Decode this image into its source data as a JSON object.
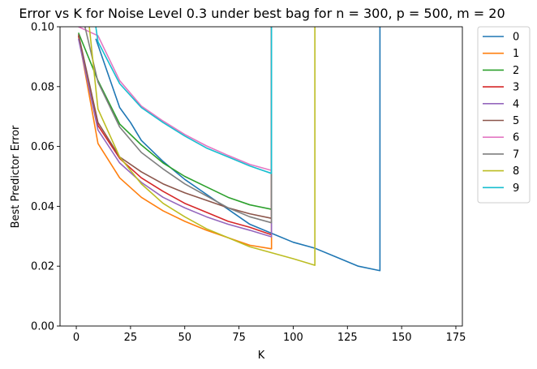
{
  "chart_data": {
    "type": "line",
    "title": "Error vs K for Noise Level 0.3 under best bag for n = 300, p = 500, m = 20",
    "xlabel": "K",
    "ylabel": "Best Predictor Error",
    "xlim": [
      -7.5,
      178
    ],
    "ylim": [
      0.0,
      0.1
    ],
    "xticks": [
      0,
      25,
      50,
      75,
      100,
      125,
      150,
      175
    ],
    "yticks": [
      0.0,
      0.02,
      0.04,
      0.06,
      0.08,
      0.1
    ],
    "xtick_labels": [
      "0",
      "25",
      "50",
      "75",
      "100",
      "125",
      "150",
      "175"
    ],
    "ytick_labels": [
      "0.00",
      "0.02",
      "0.04",
      "0.06",
      "0.08",
      "0.10"
    ],
    "grid": false,
    "legend_position": "outside-right-top",
    "series": [
      {
        "name": "0",
        "color": "#1f77b4",
        "points": [
          [
            9,
            0.096
          ],
          [
            20,
            0.073
          ],
          [
            25,
            0.068
          ],
          [
            30,
            0.062
          ],
          [
            40,
            0.055
          ],
          [
            50,
            0.049
          ],
          [
            60,
            0.044
          ],
          [
            70,
            0.039
          ],
          [
            80,
            0.034
          ],
          [
            90,
            0.031
          ],
          [
            100,
            0.028
          ],
          [
            110,
            0.026
          ],
          [
            120,
            0.023
          ],
          [
            130,
            0.02
          ],
          [
            140,
            0.0185
          ],
          [
            140,
            0.1
          ]
        ]
      },
      {
        "name": "1",
        "color": "#ff7f0e",
        "points": [
          [
            1,
            0.097
          ],
          [
            10,
            0.061
          ],
          [
            20,
            0.0495
          ],
          [
            30,
            0.043
          ],
          [
            40,
            0.0385
          ],
          [
            50,
            0.035
          ],
          [
            60,
            0.032
          ],
          [
            70,
            0.0295
          ],
          [
            80,
            0.027
          ],
          [
            90,
            0.0258
          ],
          [
            90,
            0.1
          ]
        ]
      },
      {
        "name": "2",
        "color": "#2ca02c",
        "points": [
          [
            1,
            0.098
          ],
          [
            10,
            0.082
          ],
          [
            20,
            0.0675
          ],
          [
            30,
            0.0605
          ],
          [
            40,
            0.0545
          ],
          [
            50,
            0.05
          ],
          [
            60,
            0.0465
          ],
          [
            70,
            0.043
          ],
          [
            80,
            0.0405
          ],
          [
            90,
            0.039
          ],
          [
            90,
            0.1
          ]
        ]
      },
      {
        "name": "3",
        "color": "#d62728",
        "points": [
          [
            1,
            0.097
          ],
          [
            10,
            0.067
          ],
          [
            20,
            0.056
          ],
          [
            30,
            0.0495
          ],
          [
            40,
            0.045
          ],
          [
            50,
            0.041
          ],
          [
            60,
            0.038
          ],
          [
            70,
            0.035
          ],
          [
            80,
            0.033
          ],
          [
            90,
            0.0305
          ],
          [
            90,
            0.1
          ]
        ]
      },
      {
        "name": "4",
        "color": "#9467bd",
        "points": [
          [
            1,
            0.096
          ],
          [
            10,
            0.0655
          ],
          [
            20,
            0.0545
          ],
          [
            30,
            0.048
          ],
          [
            40,
            0.043
          ],
          [
            50,
            0.0395
          ],
          [
            60,
            0.0365
          ],
          [
            70,
            0.034
          ],
          [
            80,
            0.032
          ],
          [
            90,
            0.0298
          ],
          [
            90,
            0.1
          ]
        ]
      },
      {
        "name": "5",
        "color": "#8c564b",
        "points": [
          [
            1,
            0.0975
          ],
          [
            10,
            0.068
          ],
          [
            20,
            0.0565
          ],
          [
            30,
            0.0515
          ],
          [
            40,
            0.0475
          ],
          [
            50,
            0.0445
          ],
          [
            60,
            0.042
          ],
          [
            70,
            0.0395
          ],
          [
            80,
            0.0375
          ],
          [
            90,
            0.036
          ],
          [
            90,
            0.1
          ]
        ]
      },
      {
        "name": "6",
        "color": "#e377c2",
        "points": [
          [
            1,
            0.1
          ],
          [
            10,
            0.097
          ],
          [
            20,
            0.082
          ],
          [
            30,
            0.0735
          ],
          [
            40,
            0.0685
          ],
          [
            50,
            0.064
          ],
          [
            60,
            0.0602
          ],
          [
            70,
            0.057
          ],
          [
            80,
            0.054
          ],
          [
            90,
            0.052
          ],
          [
            90,
            0.1
          ]
        ]
      },
      {
        "name": "7",
        "color": "#7f7f7f",
        "points": [
          [
            4,
            0.1
          ],
          [
            10,
            0.0815
          ],
          [
            20,
            0.0665
          ],
          [
            30,
            0.058
          ],
          [
            40,
            0.0525
          ],
          [
            50,
            0.0475
          ],
          [
            60,
            0.0435
          ],
          [
            70,
            0.0395
          ],
          [
            80,
            0.0365
          ],
          [
            90,
            0.0345
          ],
          [
            90,
            0.1
          ]
        ]
      },
      {
        "name": "8",
        "color": "#bcbd22",
        "points": [
          [
            6,
            0.1
          ],
          [
            10,
            0.0725
          ],
          [
            20,
            0.0565
          ],
          [
            30,
            0.0475
          ],
          [
            40,
            0.041
          ],
          [
            50,
            0.0365
          ],
          [
            60,
            0.0325
          ],
          [
            70,
            0.0295
          ],
          [
            80,
            0.0265
          ],
          [
            90,
            0.0245
          ],
          [
            100,
            0.0225
          ],
          [
            110,
            0.0203
          ],
          [
            110,
            0.1
          ]
        ]
      },
      {
        "name": "9",
        "color": "#17becf",
        "points": [
          [
            9,
            0.1
          ],
          [
            10,
            0.095
          ],
          [
            20,
            0.081
          ],
          [
            30,
            0.073
          ],
          [
            40,
            0.068
          ],
          [
            50,
            0.0635
          ],
          [
            60,
            0.0595
          ],
          [
            70,
            0.0565
          ],
          [
            80,
            0.0535
          ],
          [
            90,
            0.051
          ],
          [
            90,
            0.1
          ]
        ]
      }
    ]
  }
}
